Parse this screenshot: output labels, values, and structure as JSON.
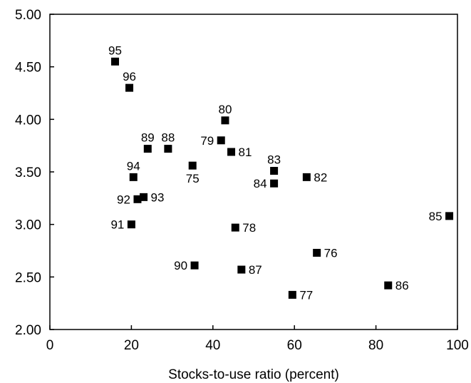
{
  "chart_data": {
    "type": "scatter",
    "title": "",
    "xlabel": "Stocks-to-use ratio (percent)",
    "ylabel": "",
    "xlim": [
      0,
      100
    ],
    "ylim": [
      2.0,
      5.0
    ],
    "x_ticks": [
      {
        "value": 0,
        "label": "0"
      },
      {
        "value": 20,
        "label": "20"
      },
      {
        "value": 40,
        "label": "40"
      },
      {
        "value": 60,
        "label": "60"
      },
      {
        "value": 80,
        "label": "80"
      },
      {
        "value": 100,
        "label": "100"
      }
    ],
    "y_ticks": [
      {
        "value": 2.0,
        "label": "2.00"
      },
      {
        "value": 2.5,
        "label": "2.50"
      },
      {
        "value": 3.0,
        "label": "3.00"
      },
      {
        "value": 3.5,
        "label": "3.50"
      },
      {
        "value": 4.0,
        "label": "4.00"
      },
      {
        "value": 4.5,
        "label": "4.50"
      },
      {
        "value": 5.0,
        "label": "5.00"
      }
    ],
    "grid": false,
    "legend": "none",
    "marker": "square",
    "marker_color": "#000000",
    "points": [
      {
        "label": "95",
        "x": 16.0,
        "y": 4.55,
        "label_pos": "above"
      },
      {
        "label": "96",
        "x": 19.5,
        "y": 4.3,
        "label_pos": "above"
      },
      {
        "label": "80",
        "x": 43.0,
        "y": 3.99,
        "label_pos": "above"
      },
      {
        "label": "79",
        "x": 42.0,
        "y": 3.8,
        "label_pos": "left"
      },
      {
        "label": "89",
        "x": 24.0,
        "y": 3.72,
        "label_pos": "above"
      },
      {
        "label": "88",
        "x": 29.0,
        "y": 3.72,
        "label_pos": "above"
      },
      {
        "label": "81",
        "x": 44.5,
        "y": 3.69,
        "label_pos": "right"
      },
      {
        "label": "75",
        "x": 35.0,
        "y": 3.56,
        "label_pos": "below"
      },
      {
        "label": "83",
        "x": 55.0,
        "y": 3.51,
        "label_pos": "above"
      },
      {
        "label": "94",
        "x": 20.5,
        "y": 3.45,
        "label_pos": "above"
      },
      {
        "label": "82",
        "x": 63.0,
        "y": 3.45,
        "label_pos": "right"
      },
      {
        "label": "84",
        "x": 55.0,
        "y": 3.39,
        "label_pos": "left"
      },
      {
        "label": "93",
        "x": 23.0,
        "y": 3.26,
        "label_pos": "right"
      },
      {
        "label": "92",
        "x": 21.5,
        "y": 3.24,
        "label_pos": "left"
      },
      {
        "label": "85",
        "x": 98.0,
        "y": 3.08,
        "label_pos": "left"
      },
      {
        "label": "91",
        "x": 20.0,
        "y": 3.0,
        "label_pos": "left"
      },
      {
        "label": "78",
        "x": 45.5,
        "y": 2.97,
        "label_pos": "right"
      },
      {
        "label": "76",
        "x": 65.5,
        "y": 2.73,
        "label_pos": "right"
      },
      {
        "label": "90",
        "x": 35.5,
        "y": 2.61,
        "label_pos": "left"
      },
      {
        "label": "87",
        "x": 47.0,
        "y": 2.57,
        "label_pos": "right"
      },
      {
        "label": "86",
        "x": 83.0,
        "y": 2.42,
        "label_pos": "right"
      },
      {
        "label": "77",
        "x": 59.5,
        "y": 2.33,
        "label_pos": "right"
      }
    ]
  }
}
